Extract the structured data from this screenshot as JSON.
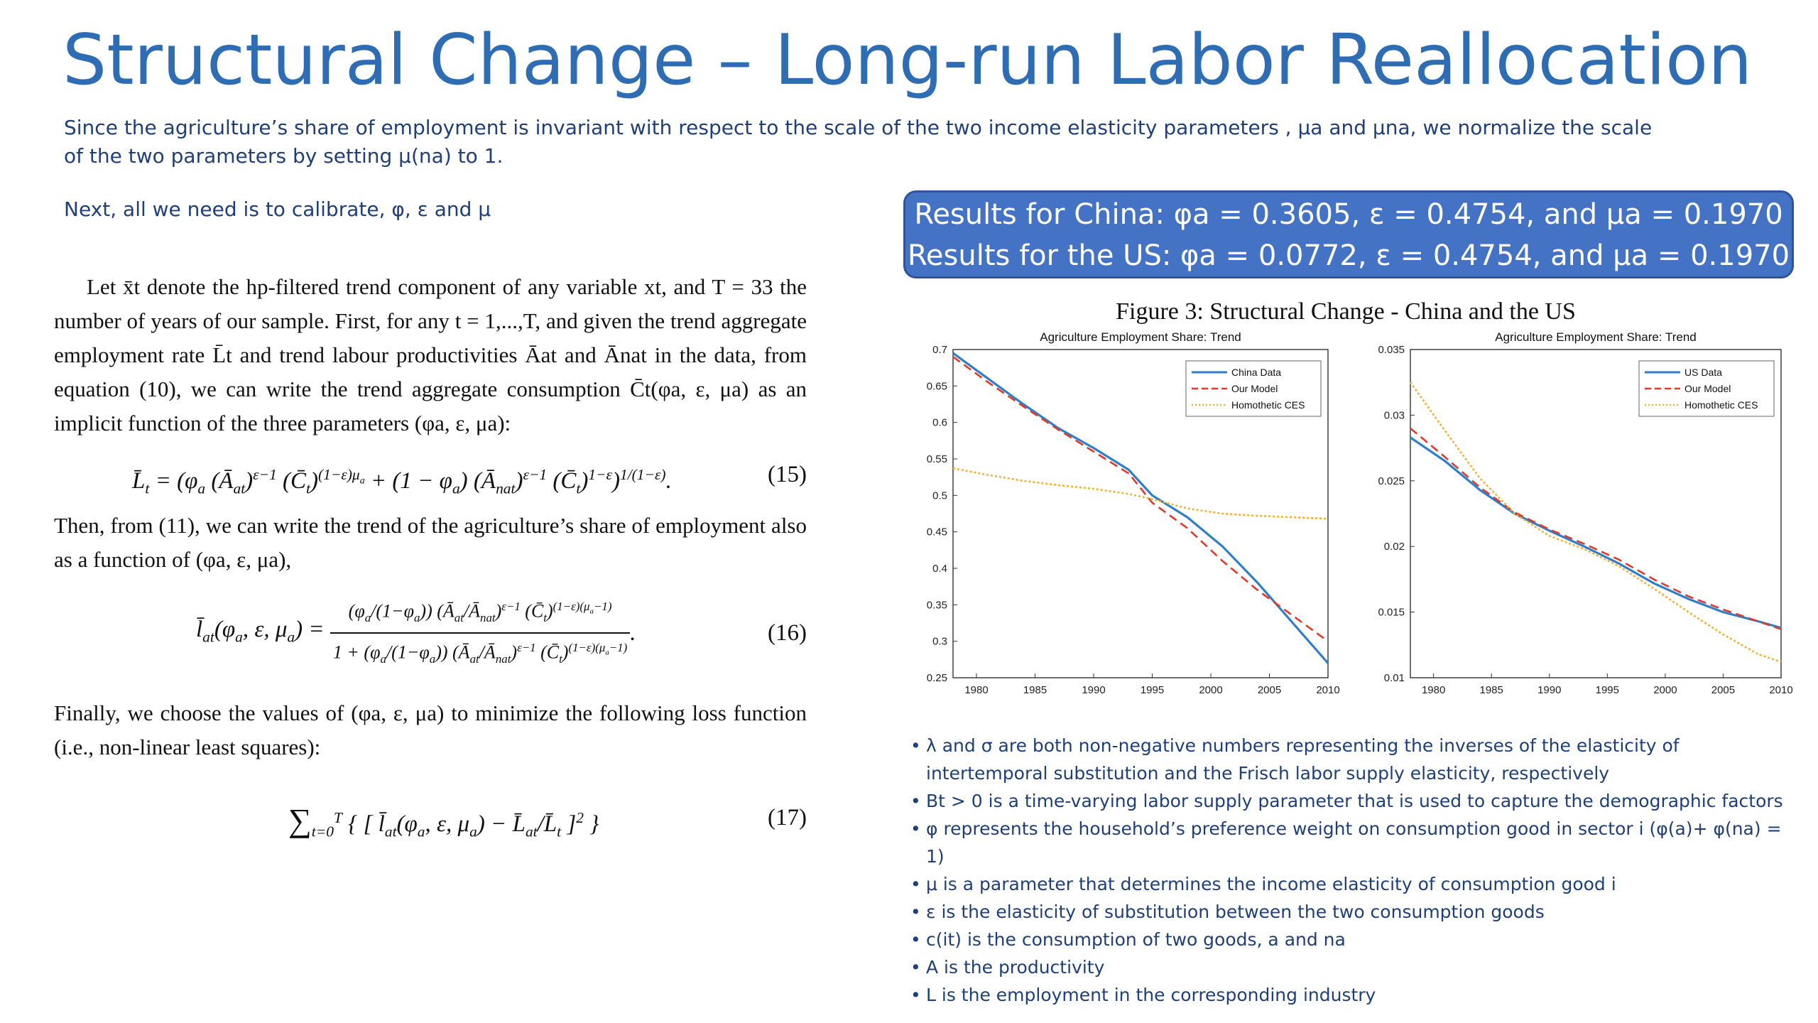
{
  "slide": {
    "title": "Structural Change – Long-run Labor Reallocation",
    "intro": "Since the agriculture’s share of employment is invariant with respect to the scale of the two income elasticity parameters , μa and μna, we normalize the scale of the two parameters by setting μ(na) to 1.",
    "next": "Next, all we need is to calibrate, φ, ε and μ"
  },
  "paper": {
    "para1": "Let x̄t denote the hp-filtered trend component of any variable xt, and T = 33 the number of years of our sample. First, for any t = 1,...,T, and given the trend aggregate employment rate L̄t and trend labour productivities Āat and Ānat in the data, from equation (10), we can write the trend aggregate consumption C̄t(φa, ε, μa) as an implicit function of the three parameters (φa, ε, μa):",
    "eq15_num": "(15)",
    "para2": "Then, from (11), we can write the trend of the agriculture’s share of employment also as a function of (φa, ε, μa),",
    "eq16_num": "(16)",
    "para3": "Finally, we choose the values of (φa, ε, μa) to minimize the following loss function (i.e., non-linear least squares):",
    "eq17_num": "(17)"
  },
  "results": {
    "china": "Results for China: φa = 0.3605, ε = 0.4754, and μa = 0.1970",
    "us": "Results for the US: φa = 0.0772, ε = 0.4754, and μa = 0.1970"
  },
  "figure_title": "Figure 3: Structural Change - China and the US",
  "colors": {
    "data": "#2F7FC8",
    "model": "#E0392B",
    "ces": "#F2B035",
    "accent": "#2E6DB4"
  },
  "chart_data": [
    {
      "type": "line",
      "title": "Agriculture Employment Share: Trend",
      "xlim": [
        1978,
        2010
      ],
      "ylim": [
        0.25,
        0.7
      ],
      "xticks": [
        1980,
        1985,
        1990,
        1995,
        2000,
        2005,
        2010
      ],
      "yticks": [
        "0.25",
        "0.3",
        "0.35",
        "0.4",
        "0.45",
        "0.5",
        "0.55",
        "0.6",
        "0.65",
        "0.7"
      ],
      "grid": false,
      "legend_position": "top-right",
      "x": [
        1978,
        1981,
        1984,
        1987,
        1990,
        1993,
        1995,
        1998,
        2001,
        2004,
        2007,
        2010
      ],
      "series": [
        {
          "name": "China Data",
          "style": "solid",
          "values": [
            0.695,
            0.66,
            0.625,
            0.592,
            0.565,
            0.535,
            0.5,
            0.47,
            0.43,
            0.38,
            0.325,
            0.27
          ]
        },
        {
          "name": "Our Model",
          "style": "dashed",
          "values": [
            0.69,
            0.655,
            0.622,
            0.59,
            0.56,
            0.53,
            0.49,
            0.455,
            0.41,
            0.37,
            0.335,
            0.3
          ]
        },
        {
          "name": "Homothetic CES",
          "style": "dotted",
          "values": [
            0.537,
            0.528,
            0.52,
            0.514,
            0.509,
            0.502,
            0.495,
            0.482,
            0.475,
            0.472,
            0.47,
            0.468
          ]
        }
      ]
    },
    {
      "type": "line",
      "title": "Agriculture Employment Share: Trend",
      "xlim": [
        1978,
        2010
      ],
      "ylim": [
        0.01,
        0.035
      ],
      "xticks": [
        1980,
        1985,
        1990,
        1995,
        2000,
        2005,
        2010
      ],
      "yticks": [
        "0.01",
        "0.015",
        "0.02",
        "0.025",
        "0.03",
        "0.035"
      ],
      "grid": false,
      "legend_position": "top-right",
      "x": [
        1978,
        1981,
        1984,
        1987,
        1990,
        1993,
        1996,
        1999,
        2002,
        2005,
        2008,
        2010
      ],
      "series": [
        {
          "name": "US Data",
          "style": "solid",
          "values": [
            0.0283,
            0.0265,
            0.0243,
            0.0225,
            0.0212,
            0.02,
            0.0187,
            0.0172,
            0.016,
            0.015,
            0.0143,
            0.0138
          ]
        },
        {
          "name": "Our Model",
          "style": "dashed",
          "values": [
            0.029,
            0.0268,
            0.0245,
            0.0226,
            0.0213,
            0.0202,
            0.019,
            0.0175,
            0.0162,
            0.0152,
            0.0143,
            0.0137
          ]
        },
        {
          "name": "Homothetic CES",
          "style": "dotted",
          "values": [
            0.0325,
            0.0288,
            0.0252,
            0.0225,
            0.0208,
            0.0198,
            0.0185,
            0.0168,
            0.015,
            0.0133,
            0.0118,
            0.0112
          ]
        }
      ]
    }
  ],
  "bullets": [
    "λ and σ are both non-negative numbers representing the inverses of the elasticity of intertemporal substitution and the Frisch labor supply elasticity, respectively",
    "Bt > 0 is a time-varying labor supply parameter that is used to capture the demographic factors",
    "φ represents the household’s preference weight on consumption good in sector i (φ(a)+ φ(na) = 1)",
    "μ is a parameter that determines the income elasticity of consumption good i",
    "ε is the elasticity of substitution between the two consumption goods",
    "c(it) is the consumption of two goods, a and na",
    "A is the productivity",
    "L is the employment in the corresponding industry"
  ]
}
